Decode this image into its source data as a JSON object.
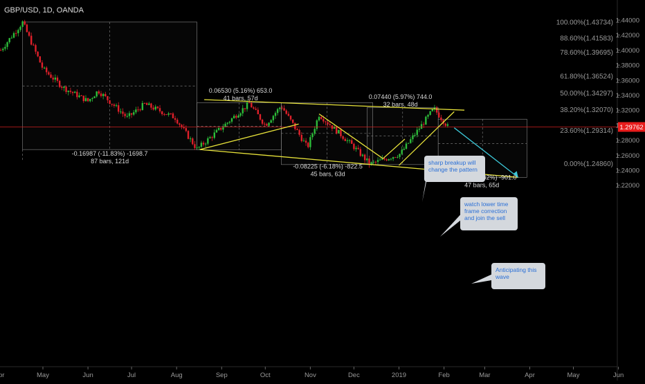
{
  "symbol_title": "GBP/USD, 1D, OANDA",
  "colors": {
    "background": "#000000",
    "up_candle": "#2dbd3a",
    "down_candle": "#e0202a",
    "trendline": "#e8e33a",
    "projection": "#3cc6d6",
    "price_line": "#d12020",
    "price_tag": "#e81c1c",
    "fib_text": "#9a9a9a",
    "box_border": "#8a8a8a",
    "callout_bg": "#d4d8dd",
    "callout_text": "#2a6fd6"
  },
  "current_price": "1.29762",
  "chart_data": {
    "type": "candlestick",
    "title": "GBP/USD, 1D, OANDA",
    "ylim": [
      1.21,
      1.458
    ],
    "y_ticks": [
      "1.22000",
      "1.24000",
      "1.26000",
      "1.28000",
      "1.30000",
      "1.32000",
      "1.34000",
      "1.36000",
      "1.38000",
      "1.40000",
      "1.42000",
      "1.44000"
    ],
    "x_ticks": [
      "Apr",
      "May",
      "Jun",
      "Jul",
      "Aug",
      "Sep",
      "Oct",
      "Nov",
      "Dec",
      "2019",
      "Feb",
      "Mar",
      "Apr",
      "May",
      "Jun"
    ],
    "price_keypoints": [
      {
        "date": "2018-04-02",
        "price": 1.4
      },
      {
        "date": "2018-04-17",
        "price": 1.437
      },
      {
        "date": "2018-05-01",
        "price": 1.375
      },
      {
        "date": "2018-05-15",
        "price": 1.35
      },
      {
        "date": "2018-06-01",
        "price": 1.332
      },
      {
        "date": "2018-06-08",
        "price": 1.346
      },
      {
        "date": "2018-06-28",
        "price": 1.31
      },
      {
        "date": "2018-07-10",
        "price": 1.328
      },
      {
        "date": "2018-07-31",
        "price": 1.31
      },
      {
        "date": "2018-08-15",
        "price": 1.268
      },
      {
        "date": "2018-09-20",
        "price": 1.329
      },
      {
        "date": "2018-10-01",
        "price": 1.3
      },
      {
        "date": "2018-10-12",
        "price": 1.326
      },
      {
        "date": "2018-10-30",
        "price": 1.27
      },
      {
        "date": "2018-11-07",
        "price": 1.314
      },
      {
        "date": "2018-11-30",
        "price": 1.273
      },
      {
        "date": "2018-12-12",
        "price": 1.248
      },
      {
        "date": "2019-01-02",
        "price": 1.262
      },
      {
        "date": "2019-01-25",
        "price": 1.322
      },
      {
        "date": "2019-02-04",
        "price": 1.297
      }
    ],
    "fib_levels": [
      {
        "label": "100.00%(1.43734)",
        "value": 1.43734
      },
      {
        "label": "88.60%(1.41583)",
        "value": 1.41583
      },
      {
        "label": "78.60%(1.39695)",
        "value": 1.39695
      },
      {
        "label": "61.80%(1.36524)",
        "value": 1.36524
      },
      {
        "label": "50.00%(1.34297)",
        "value": 1.34297
      },
      {
        "label": "38.20%(1.32070)",
        "value": 1.3207
      },
      {
        "label": "23.60%(1.29314)",
        "value": 1.29314
      },
      {
        "label": "0.00%(1.24860)",
        "value": 1.2486
      }
    ],
    "measurements": [
      {
        "line1": "-0.16987 (-11.83%) -1698.7",
        "line2": "87 bars, 121d"
      },
      {
        "line1": "0.06530 (5.16%) 653.0",
        "line2": "41 bars, 57d"
      },
      {
        "line1": "-0.08225 (-6.18%) -822.5",
        "line2": "45 bars, 63d"
      },
      {
        "line1": "0.07440 (5.97%) 744.0",
        "line2": "32 bars, 48d"
      },
      {
        "line1": "-0.09010 (-6.82%) -901.0",
        "line2": "47 bars, 65d"
      }
    ],
    "annotations": [
      {
        "text": "sharp breakup will change the pattern"
      },
      {
        "text": "watch lower time frame correction and join the sell"
      },
      {
        "text": "Anticipating this wave"
      }
    ]
  }
}
